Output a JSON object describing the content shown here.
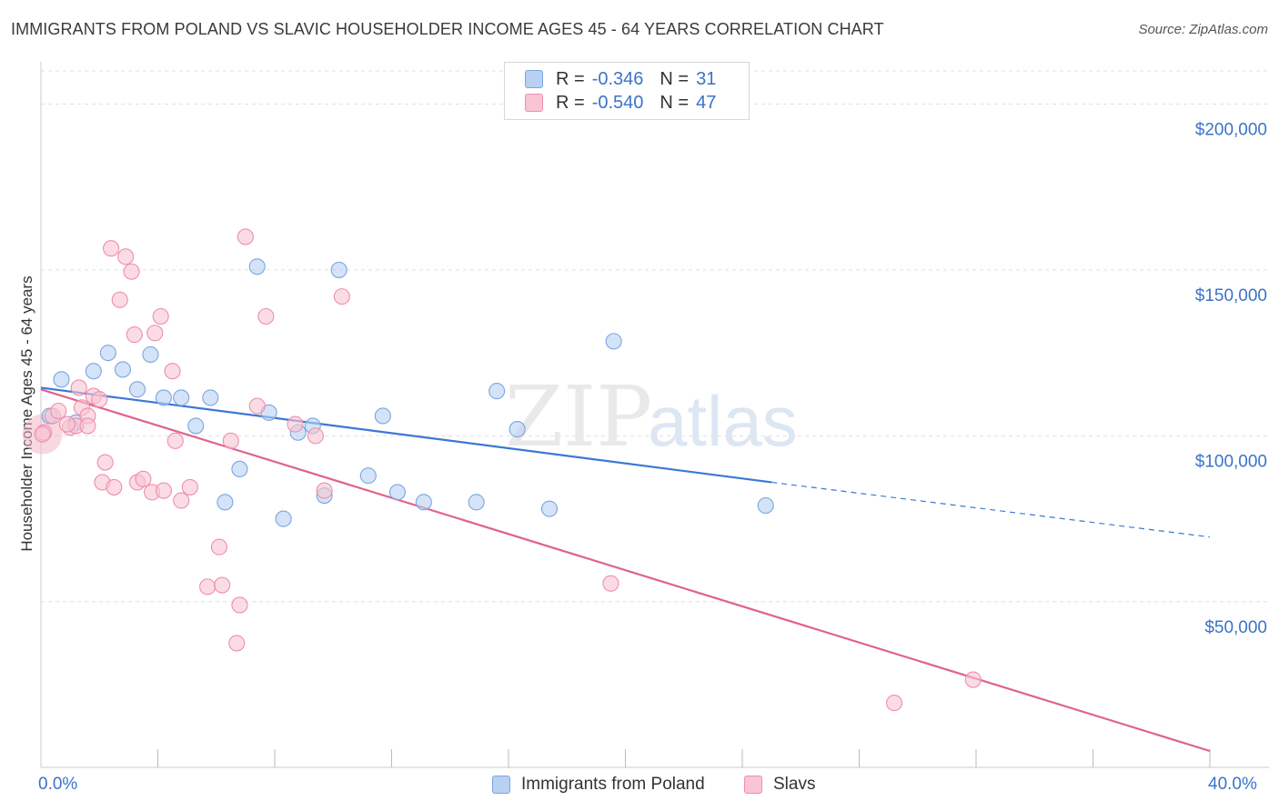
{
  "title": "IMMIGRANTS FROM POLAND VS SLAVIC HOUSEHOLDER INCOME AGES 45 - 64 YEARS CORRELATION CHART",
  "source": "Source: ZipAtlas.com",
  "watermark": {
    "zip": "ZIP",
    "atlas": "atlas"
  },
  "legend": {
    "rows": [
      {
        "r_label": "R =",
        "r_value": "-0.346",
        "n_label": "N =",
        "n_value": "31",
        "fill": "#b8d0f2",
        "stroke": "#7aa6e0"
      },
      {
        "r_label": "R =",
        "r_value": "-0.540",
        "n_label": "N =",
        "n_value": "47",
        "fill": "#f9c4d4",
        "stroke": "#ee8eaa"
      }
    ]
  },
  "bottom_legend": [
    {
      "label": "Immigrants from Poland",
      "fill": "#b8d0f2",
      "stroke": "#7aa6e0"
    },
    {
      "label": "Slavs",
      "fill": "#f9c4d4",
      "stroke": "#ee8eaa"
    }
  ],
  "x_labels": {
    "min": "0.0%",
    "max": "40.0%"
  },
  "chart_data": {
    "type": "scatter",
    "title": "IMMIGRANTS FROM POLAND VS SLAVIC HOUSEHOLDER INCOME AGES 45 - 64 YEARS CORRELATION CHART",
    "xlabel": "",
    "ylabel": "Householder Income Ages 45 - 64 years",
    "xlim": [
      0,
      40
    ],
    "ylim": [
      5000,
      210000
    ],
    "y_ticks": [
      {
        "value": 50000,
        "label": "$50,000"
      },
      {
        "value": 100000,
        "label": "$100,000"
      },
      {
        "value": 150000,
        "label": "$150,000"
      },
      {
        "value": 200000,
        "label": "$200,000"
      }
    ],
    "grid": true,
    "series": [
      {
        "name": "Immigrants from Poland",
        "color": "#3a78d4",
        "point_fill": "#b8d0f2",
        "point_stroke": "#7aa6e0",
        "points": [
          [
            0.3,
            106000
          ],
          [
            0.7,
            117000
          ],
          [
            1.2,
            104000
          ],
          [
            1.8,
            119500
          ],
          [
            2.3,
            125000
          ],
          [
            2.8,
            120000
          ],
          [
            3.3,
            114000
          ],
          [
            3.75,
            124500
          ],
          [
            4.2,
            111500
          ],
          [
            4.8,
            111500
          ],
          [
            5.3,
            103000
          ],
          [
            5.8,
            111500
          ],
          [
            6.3,
            80000
          ],
          [
            6.8,
            90000
          ],
          [
            7.4,
            151000
          ],
          [
            7.8,
            107000
          ],
          [
            8.3,
            75000
          ],
          [
            8.8,
            101000
          ],
          [
            9.3,
            103000
          ],
          [
            9.7,
            82000
          ],
          [
            10.2,
            150000
          ],
          [
            11.2,
            88000
          ],
          [
            11.7,
            106000
          ],
          [
            12.2,
            83000
          ],
          [
            13.1,
            80000
          ],
          [
            14.9,
            80000
          ],
          [
            15.6,
            113500
          ],
          [
            16.3,
            102000
          ],
          [
            17.4,
            78000
          ],
          [
            19.6,
            128500
          ],
          [
            24.8,
            79000
          ]
        ],
        "trend": {
          "x0": 0,
          "y0": 114500,
          "x1": 25,
          "y1": 86000,
          "dash_x1": 40,
          "dash_y1": 69500
        }
      },
      {
        "name": "Slavs",
        "color": "#e0628d",
        "point_fill": "#f9c4d4",
        "point_stroke": "#ee8eaa",
        "points": [
          [
            0.1,
            101000
          ],
          [
            0.4,
            106000
          ],
          [
            0.6,
            107500
          ],
          [
            1.0,
            102500
          ],
          [
            1.2,
            103000
          ],
          [
            1.3,
            114500
          ],
          [
            1.4,
            108500
          ],
          [
            1.6,
            106000
          ],
          [
            1.8,
            112000
          ],
          [
            2.0,
            111000
          ],
          [
            2.2,
            92000
          ],
          [
            2.1,
            86000
          ],
          [
            2.5,
            84500
          ],
          [
            2.4,
            156500
          ],
          [
            2.7,
            141000
          ],
          [
            2.9,
            154000
          ],
          [
            3.1,
            149500
          ],
          [
            3.2,
            130500
          ],
          [
            3.3,
            86000
          ],
          [
            3.5,
            87000
          ],
          [
            3.8,
            83000
          ],
          [
            3.9,
            131000
          ],
          [
            4.1,
            136000
          ],
          [
            4.2,
            83500
          ],
          [
            4.5,
            119500
          ],
          [
            4.6,
            98500
          ],
          [
            4.8,
            80500
          ],
          [
            5.1,
            84500
          ],
          [
            5.7,
            54500
          ],
          [
            6.1,
            66500
          ],
          [
            6.2,
            55000
          ],
          [
            6.5,
            98500
          ],
          [
            6.8,
            49000
          ],
          [
            6.7,
            37500
          ],
          [
            7.0,
            160000
          ],
          [
            7.4,
            109000
          ],
          [
            7.7,
            136000
          ],
          [
            8.7,
            103500
          ],
          [
            9.4,
            100000
          ],
          [
            9.7,
            83500
          ],
          [
            10.3,
            142000
          ],
          [
            19.5,
            55500
          ],
          [
            29.2,
            19500
          ],
          [
            31.9,
            26500
          ],
          [
            0.05,
            100500
          ],
          [
            0.9,
            103500
          ],
          [
            1.6,
            103000
          ]
        ],
        "trend": {
          "x0": 0,
          "y0": 114000,
          "x1": 40,
          "y1": 5000
        }
      }
    ]
  }
}
